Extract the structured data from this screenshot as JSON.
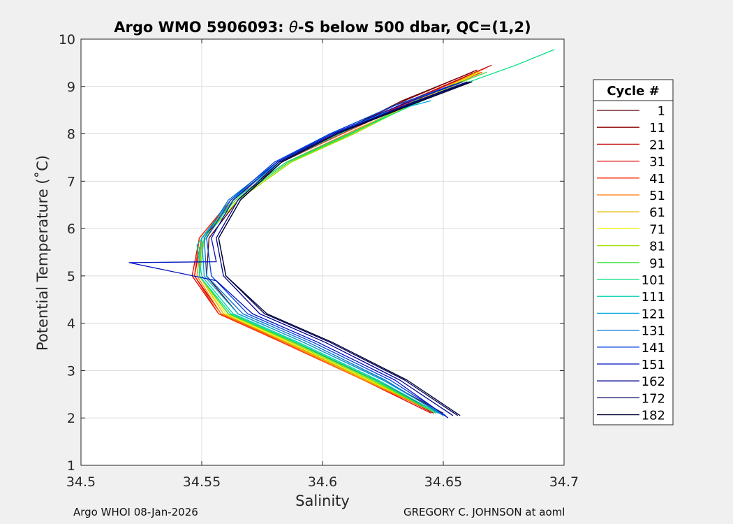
{
  "footer": {
    "left": "Argo WHOI 08-Jan-2026",
    "right": "GREGORY C. JOHNSON at aoml"
  },
  "chart_data": {
    "type": "line",
    "title": "Argo WMO 5906093: θ-S below 500 dbar,  QC=(1,2)",
    "title_parts": {
      "prefix": "Argo WMO 5906093: ",
      "theta": "θ",
      "suffix": "-S below 500 dbar,  QC=(1,2)"
    },
    "xlabel": "Salinity",
    "ylabel": "Potential Temperature (˚C)",
    "xlim": [
      34.5,
      34.7
    ],
    "ylim": [
      1,
      10
    ],
    "xticks": [
      "34.5",
      "34.55",
      "34.6",
      "34.65",
      "34.7"
    ],
    "yticks": [
      "1",
      "2",
      "3",
      "4",
      "5",
      "6",
      "7",
      "8",
      "9",
      "10"
    ],
    "grid": true,
    "legend_title": "Cycle #",
    "legend_placement": "outside-right",
    "series": [
      {
        "name": "1",
        "color": "#5a0000",
        "points": [
          [
            34.65,
            2.1
          ],
          [
            34.625,
            2.8
          ],
          [
            34.592,
            3.6
          ],
          [
            34.565,
            4.2
          ],
          [
            34.552,
            5.0
          ],
          [
            34.553,
            5.8
          ],
          [
            34.565,
            6.6
          ],
          [
            34.583,
            7.4
          ],
          [
            34.606,
            8.0
          ],
          [
            34.633,
            8.7
          ],
          [
            34.662,
            9.3
          ]
        ]
      },
      {
        "name": "11",
        "color": "#8b0000",
        "points": [
          [
            34.648,
            2.1
          ],
          [
            34.622,
            2.8
          ],
          [
            34.588,
            3.6
          ],
          [
            34.561,
            4.2
          ],
          [
            34.549,
            5.0
          ],
          [
            34.551,
            5.8
          ],
          [
            34.563,
            6.6
          ],
          [
            34.582,
            7.4
          ],
          [
            34.606,
            8.0
          ],
          [
            34.634,
            8.7
          ],
          [
            34.664,
            9.35
          ]
        ]
      },
      {
        "name": "21",
        "color": "#c00000",
        "points": [
          [
            34.646,
            2.1
          ],
          [
            34.619,
            2.8
          ],
          [
            34.585,
            3.6
          ],
          [
            34.558,
            4.2
          ],
          [
            34.547,
            5.0
          ],
          [
            34.55,
            5.8
          ],
          [
            34.562,
            6.6
          ],
          [
            34.582,
            7.4
          ],
          [
            34.606,
            8.0
          ],
          [
            34.636,
            8.7
          ],
          [
            34.67,
            9.45
          ]
        ]
      },
      {
        "name": "31",
        "color": "#e40000",
        "points": [
          [
            34.645,
            2.1
          ],
          [
            34.617,
            2.8
          ],
          [
            34.584,
            3.6
          ],
          [
            34.557,
            4.2
          ],
          [
            34.546,
            5.0
          ],
          [
            34.549,
            5.8
          ],
          [
            34.562,
            6.6
          ],
          [
            34.583,
            7.4
          ],
          [
            34.607,
            8.0
          ],
          [
            34.637,
            8.7
          ],
          [
            34.668,
            9.4
          ]
        ]
      },
      {
        "name": "41",
        "color": "#ff2a00",
        "points": [
          [
            34.645,
            2.15
          ],
          [
            34.617,
            2.8
          ],
          [
            34.583,
            3.6
          ],
          [
            34.557,
            4.2
          ],
          [
            34.547,
            5.0
          ],
          [
            34.549,
            5.8
          ],
          [
            34.562,
            6.6
          ],
          [
            34.583,
            7.4
          ],
          [
            34.608,
            8.0
          ],
          [
            34.638,
            8.7
          ],
          [
            34.666,
            9.3
          ]
        ]
      },
      {
        "name": "51",
        "color": "#ff7a00",
        "points": [
          [
            34.645,
            2.15
          ],
          [
            34.617,
            2.8
          ],
          [
            34.584,
            3.6
          ],
          [
            34.558,
            4.2
          ],
          [
            34.548,
            5.0
          ],
          [
            34.55,
            5.8
          ],
          [
            34.563,
            6.6
          ],
          [
            34.585,
            7.4
          ],
          [
            34.61,
            8.0
          ],
          [
            34.64,
            8.7
          ],
          [
            34.666,
            9.35
          ]
        ]
      },
      {
        "name": "61",
        "color": "#e6b800",
        "points": [
          [
            34.646,
            2.15
          ],
          [
            34.618,
            2.8
          ],
          [
            34.585,
            3.6
          ],
          [
            34.559,
            4.2
          ],
          [
            34.549,
            5.0
          ],
          [
            34.55,
            5.8
          ],
          [
            34.564,
            6.6
          ],
          [
            34.586,
            7.4
          ],
          [
            34.611,
            8.0
          ],
          [
            34.639,
            8.7
          ],
          [
            34.664,
            9.3
          ]
        ]
      },
      {
        "name": "71",
        "color": "#f0f000",
        "points": [
          [
            34.646,
            2.15
          ],
          [
            34.619,
            2.8
          ],
          [
            34.586,
            3.6
          ],
          [
            34.56,
            4.2
          ],
          [
            34.549,
            5.0
          ],
          [
            34.551,
            5.8
          ],
          [
            34.565,
            6.6
          ],
          [
            34.587,
            7.4
          ],
          [
            34.612,
            8.0
          ],
          [
            34.64,
            8.7
          ],
          [
            34.665,
            9.3
          ]
        ]
      },
      {
        "name": "81",
        "color": "#a0e000",
        "points": [
          [
            34.647,
            2.1
          ],
          [
            34.62,
            2.8
          ],
          [
            34.587,
            3.6
          ],
          [
            34.561,
            4.2
          ],
          [
            34.549,
            5.0
          ],
          [
            34.551,
            5.8
          ],
          [
            34.565,
            6.6
          ],
          [
            34.587,
            7.4
          ],
          [
            34.613,
            8.0
          ],
          [
            34.64,
            8.7
          ],
          [
            34.665,
            9.25
          ]
        ]
      },
      {
        "name": "91",
        "color": "#40e040",
        "points": [
          [
            34.647,
            2.1
          ],
          [
            34.621,
            2.8
          ],
          [
            34.588,
            3.6
          ],
          [
            34.561,
            4.2
          ],
          [
            34.549,
            5.0
          ],
          [
            34.55,
            5.8
          ],
          [
            34.564,
            6.6
          ],
          [
            34.586,
            7.4
          ],
          [
            34.612,
            8.0
          ],
          [
            34.642,
            8.8
          ],
          [
            34.668,
            9.3
          ]
        ]
      },
      {
        "name": "101",
        "color": "#00e080",
        "points": [
          [
            34.647,
            2.1
          ],
          [
            34.622,
            2.8
          ],
          [
            34.589,
            3.6
          ],
          [
            34.562,
            4.2
          ],
          [
            34.549,
            5.0
          ],
          [
            34.549,
            5.6
          ],
          [
            34.563,
            6.6
          ],
          [
            34.585,
            7.4
          ],
          [
            34.611,
            8.0
          ],
          [
            34.65,
            8.9
          ],
          [
            34.68,
            9.45
          ],
          [
            34.696,
            9.78
          ]
        ]
      },
      {
        "name": "111",
        "color": "#00d0b0",
        "points": [
          [
            34.648,
            2.1
          ],
          [
            34.623,
            2.8
          ],
          [
            34.59,
            3.6
          ],
          [
            34.563,
            4.2
          ],
          [
            34.55,
            5.0
          ],
          [
            34.548,
            5.65
          ],
          [
            34.562,
            6.6
          ],
          [
            34.583,
            7.4
          ],
          [
            34.607,
            8.0
          ],
          [
            34.634,
            8.6
          ],
          [
            34.655,
            9.0
          ]
        ]
      },
      {
        "name": "121",
        "color": "#00a8e0",
        "points": [
          [
            34.649,
            2.1
          ],
          [
            34.625,
            2.8
          ],
          [
            34.592,
            3.6
          ],
          [
            34.565,
            4.2
          ],
          [
            34.551,
            5.0
          ],
          [
            34.55,
            5.8
          ],
          [
            34.562,
            6.6
          ],
          [
            34.582,
            7.4
          ],
          [
            34.604,
            8.0
          ],
          [
            34.626,
            8.45
          ],
          [
            34.645,
            8.7
          ]
        ]
      },
      {
        "name": "131",
        "color": "#0070d0",
        "points": [
          [
            34.65,
            2.05
          ],
          [
            34.626,
            2.8
          ],
          [
            34.594,
            3.6
          ],
          [
            34.567,
            4.2
          ],
          [
            34.552,
            5.0
          ],
          [
            34.551,
            5.8
          ],
          [
            34.561,
            6.6
          ],
          [
            34.581,
            7.4
          ],
          [
            34.603,
            8.0
          ],
          [
            34.63,
            8.6
          ],
          [
            34.652,
            9.0
          ]
        ]
      },
      {
        "name": "141",
        "color": "#0040e0",
        "points": [
          [
            34.651,
            2.05
          ],
          [
            34.628,
            2.8
          ],
          [
            34.596,
            3.6
          ],
          [
            34.569,
            4.2
          ],
          [
            34.554,
            5.0
          ],
          [
            34.552,
            5.8
          ],
          [
            34.562,
            6.6
          ],
          [
            34.58,
            7.4
          ],
          [
            34.603,
            8.0
          ],
          [
            34.63,
            8.6
          ],
          [
            34.655,
            9.05
          ]
        ]
      },
      {
        "name": "151",
        "color": "#0010c0",
        "points": [
          [
            34.652,
            2.0
          ],
          [
            34.63,
            2.8
          ],
          [
            34.598,
            3.6
          ],
          [
            34.571,
            4.2
          ],
          [
            34.556,
            4.9
          ],
          [
            34.52,
            5.28
          ],
          [
            34.556,
            5.3
          ],
          [
            34.554,
            5.8
          ],
          [
            34.563,
            6.6
          ],
          [
            34.581,
            7.4
          ],
          [
            34.604,
            8.0
          ],
          [
            34.632,
            8.6
          ],
          [
            34.658,
            9.1
          ]
        ]
      },
      {
        "name": "162",
        "color": "#000090",
        "points": [
          [
            34.654,
            2.05
          ],
          [
            34.632,
            2.8
          ],
          [
            34.601,
            3.6
          ],
          [
            34.574,
            4.2
          ],
          [
            34.559,
            5.0
          ],
          [
            34.556,
            5.8
          ],
          [
            34.565,
            6.6
          ],
          [
            34.582,
            7.4
          ],
          [
            34.605,
            8.0
          ],
          [
            34.634,
            8.6
          ],
          [
            34.66,
            9.1
          ]
        ]
      },
      {
        "name": "172",
        "color": "#000060",
        "points": [
          [
            34.656,
            2.05
          ],
          [
            34.634,
            2.8
          ],
          [
            34.603,
            3.6
          ],
          [
            34.576,
            4.2
          ],
          [
            34.56,
            5.0
          ],
          [
            34.557,
            5.8
          ],
          [
            34.566,
            6.6
          ],
          [
            34.583,
            7.4
          ],
          [
            34.606,
            8.0
          ],
          [
            34.635,
            8.6
          ],
          [
            34.661,
            9.1
          ]
        ]
      },
      {
        "name": "182",
        "color": "#000030",
        "points": [
          [
            34.657,
            2.05
          ],
          [
            34.635,
            2.8
          ],
          [
            34.604,
            3.6
          ],
          [
            34.577,
            4.2
          ],
          [
            34.56,
            5.0
          ],
          [
            34.557,
            5.8
          ],
          [
            34.566,
            6.6
          ],
          [
            34.583,
            7.4
          ],
          [
            34.606,
            8.0
          ],
          [
            34.636,
            8.6
          ],
          [
            34.662,
            9.1
          ]
        ]
      }
    ]
  }
}
